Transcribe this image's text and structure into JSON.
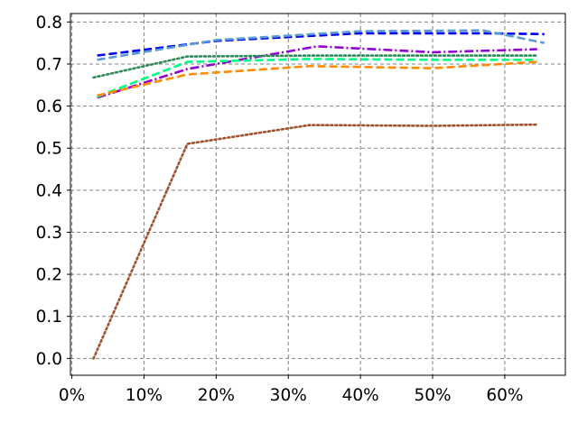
{
  "chart_data": {
    "type": "line",
    "title": "",
    "xlabel": "",
    "ylabel": "",
    "xlim": [
      -0.2,
      68.4
    ],
    "ylim": [
      -0.04,
      0.82
    ],
    "grid": true,
    "x_ticks": [
      0,
      10,
      20,
      30,
      40,
      50,
      60
    ],
    "x_tick_labels": [
      "0%",
      "10%",
      "20%",
      "30%",
      "40%",
      "50%",
      "60%"
    ],
    "y_ticks": [
      0.0,
      0.1,
      0.2,
      0.3,
      0.4,
      0.5,
      0.6,
      0.7,
      0.8
    ],
    "y_tick_labels": [
      "0.0",
      "0.1",
      "0.2",
      "0.3",
      "0.4",
      "0.5",
      "0.6",
      "0.7",
      "0.8"
    ],
    "series": [
      {
        "color": "#0000ee",
        "style": "dashed",
        "x": [
          3.5,
          20,
          40,
          57,
          65.5
        ],
        "y": [
          0.72,
          0.755,
          0.773,
          0.773,
          0.771
        ]
      },
      {
        "color": "#5b9bd5",
        "style": "dashed",
        "x": [
          3.5,
          20,
          40,
          57,
          65.5
        ],
        "y": [
          0.71,
          0.757,
          0.778,
          0.78,
          0.75
        ]
      },
      {
        "color": "#9400d3",
        "style": "dashdot",
        "x": [
          3.5,
          16,
          34,
          50,
          64.5
        ],
        "y": [
          0.62,
          0.688,
          0.742,
          0.728,
          0.735
        ]
      },
      {
        "color": "#2e8b57",
        "style": "dotted",
        "x": [
          3,
          16,
          33,
          50,
          64.5
        ],
        "y": [
          0.668,
          0.718,
          0.72,
          0.72,
          0.72
        ]
      },
      {
        "color": "#00ff7f",
        "style": "dashed",
        "x": [
          3.5,
          16,
          33,
          50,
          64.5
        ],
        "y": [
          0.622,
          0.705,
          0.712,
          0.71,
          0.71
        ]
      },
      {
        "color": "#ff8c00",
        "style": "dashed",
        "x": [
          3.5,
          16,
          33,
          50,
          64.5
        ],
        "y": [
          0.625,
          0.675,
          0.695,
          0.69,
          0.705
        ]
      },
      {
        "color": "#a0522d",
        "style": "dotted",
        "x": [
          3,
          16,
          33,
          50,
          64.5
        ],
        "y": [
          0.0,
          0.51,
          0.555,
          0.553,
          0.556
        ]
      }
    ]
  }
}
